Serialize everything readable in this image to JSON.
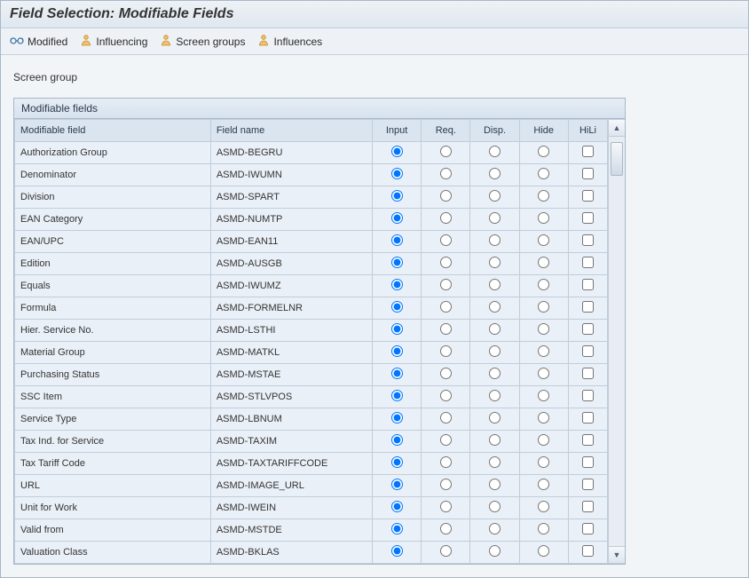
{
  "colors": {
    "header_bg": "#eef2f6",
    "panel_header_bg": "#dbe5f0",
    "row_bg": "#eaf0f7",
    "border": "#c0cddb"
  },
  "title": "Field Selection: Modifiable Fields",
  "toolbar": {
    "items": [
      {
        "name": "modified",
        "label": "Modified",
        "icon": "glasses"
      },
      {
        "name": "influencing",
        "label": "Influencing",
        "icon": "person"
      },
      {
        "name": "screen-groups",
        "label": "Screen groups",
        "icon": "person"
      },
      {
        "name": "influences",
        "label": "Influences",
        "icon": "person"
      }
    ]
  },
  "screen_group_label": "Screen group",
  "panel": {
    "title": "Modifiable fields"
  },
  "table": {
    "columns": {
      "modifiable_field": "Modifiable field",
      "field_name": "Field name",
      "input": "Input",
      "req": "Req.",
      "disp": "Disp.",
      "hide": "Hide",
      "hili": "HiLi"
    },
    "col_widths": {
      "modifiable_field": 200,
      "field_name": 165,
      "input": 50,
      "req": 50,
      "disp": 50,
      "hide": 50,
      "hili": 40
    },
    "rows": [
      {
        "label": "Authorization Group",
        "field": "ASMD-BEGRU",
        "sel": "input",
        "hili": false
      },
      {
        "label": "Denominator",
        "field": "ASMD-IWUMN",
        "sel": "input",
        "hili": false
      },
      {
        "label": "Division",
        "field": "ASMD-SPART",
        "sel": "input",
        "hili": false
      },
      {
        "label": "EAN Category",
        "field": "ASMD-NUMTP",
        "sel": "input",
        "hili": false
      },
      {
        "label": "EAN/UPC",
        "field": "ASMD-EAN11",
        "sel": "input",
        "hili": false
      },
      {
        "label": "Edition",
        "field": "ASMD-AUSGB",
        "sel": "input",
        "hili": false
      },
      {
        "label": "Equals",
        "field": "ASMD-IWUMZ",
        "sel": "input",
        "hili": false
      },
      {
        "label": "Formula",
        "field": "ASMD-FORMELNR",
        "sel": "input",
        "hili": false
      },
      {
        "label": "Hier. Service No.",
        "field": "ASMD-LSTHI",
        "sel": "input",
        "hili": false
      },
      {
        "label": "Material Group",
        "field": "ASMD-MATKL",
        "sel": "input",
        "hili": false
      },
      {
        "label": "Purchasing Status",
        "field": "ASMD-MSTAE",
        "sel": "input",
        "hili": false
      },
      {
        "label": "SSC Item",
        "field": "ASMD-STLVPOS",
        "sel": "input",
        "hili": false
      },
      {
        "label": "Service Type",
        "field": "ASMD-LBNUM",
        "sel": "input",
        "hili": false
      },
      {
        "label": "Tax Ind. for Service",
        "field": "ASMD-TAXIM",
        "sel": "input",
        "hili": false
      },
      {
        "label": "Tax Tariff Code",
        "field": "ASMD-TAXTARIFFCODE",
        "sel": "input",
        "hili": false
      },
      {
        "label": "URL",
        "field": "ASMD-IMAGE_URL",
        "sel": "input",
        "hili": false
      },
      {
        "label": "Unit for Work",
        "field": "ASMD-IWEIN",
        "sel": "input",
        "hili": false
      },
      {
        "label": "Valid from",
        "field": "ASMD-MSTDE",
        "sel": "input",
        "hili": false
      },
      {
        "label": "Valuation Class",
        "field": "ASMD-BKLAS",
        "sel": "input",
        "hili": false
      }
    ]
  }
}
